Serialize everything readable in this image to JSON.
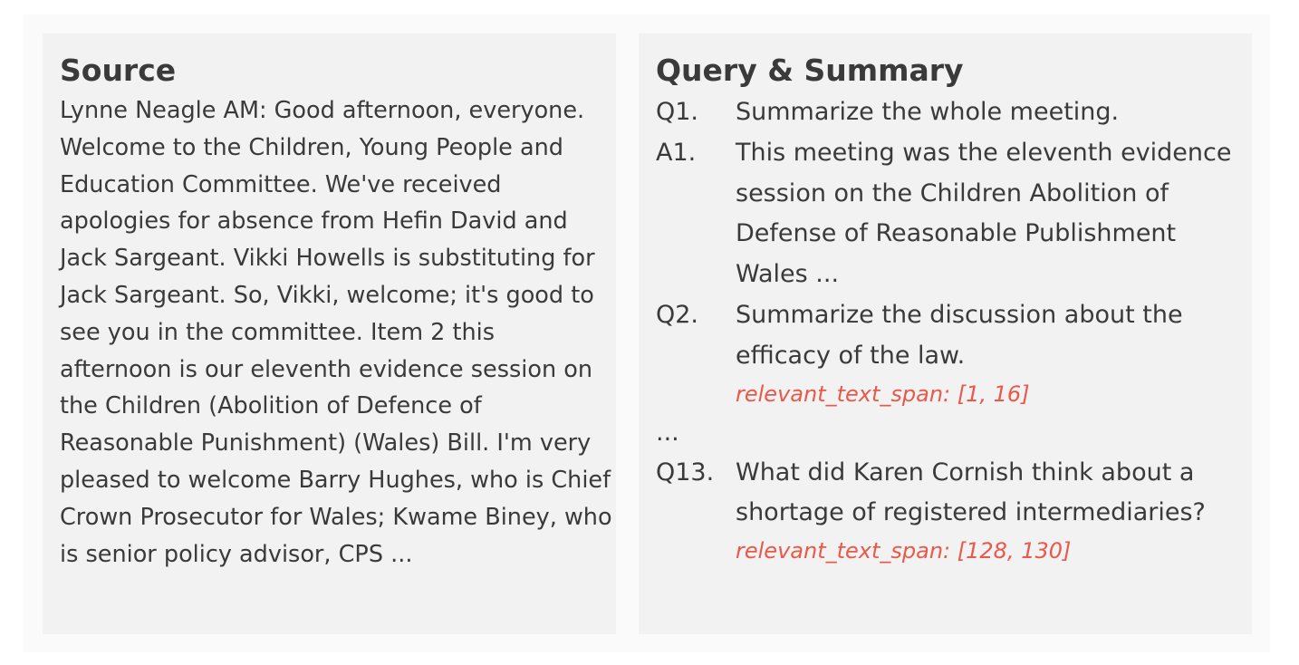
{
  "source": {
    "title": "Source",
    "text": "Lynne Neagle AM: Good afternoon, everyone. Welcome to the Children, Young People and Education Committee. We've received apologies for absence from Hefin David and Jack Sargeant. Vikki Howells is substituting for Jack Sargeant. So, Vikki, welcome; it's good to see you in the committee. Item 2 this afternoon is our eleventh evidence session on the Children (Abolition of Defence of Reasonable Punishment) (Wales) Bill. I'm very pleased to welcome Barry Hughes, who is Chief Crown Prosecutor for Wales; Kwame Biney, who is senior policy advisor, CPS ..."
  },
  "query_summary": {
    "title": "Query & Summary",
    "items": [
      {
        "marker": "Q1.",
        "text": "Summarize the whole meeting.",
        "span": ""
      },
      {
        "marker": "A1.",
        "text": "This meeting was the eleventh evidence session on the Children Abolition of Defense of Reasonable Publishment Wales ...",
        "span": ""
      },
      {
        "marker": "Q2.",
        "text": "Summarize the discussion about the efficacy of the law.",
        "span": "relevant_text_span: [1, 16]"
      }
    ],
    "ellipsis": "...",
    "last_item": {
      "marker": "Q13.",
      "text": "What did Karen Cornish think about a shortage of registered intermediaries?",
      "span": "relevant_text_span: [128, 130]"
    }
  },
  "colors": {
    "panel_bg": "#f2f2f2",
    "text": "#3a3a3a",
    "span_highlight": "#e8594a"
  }
}
